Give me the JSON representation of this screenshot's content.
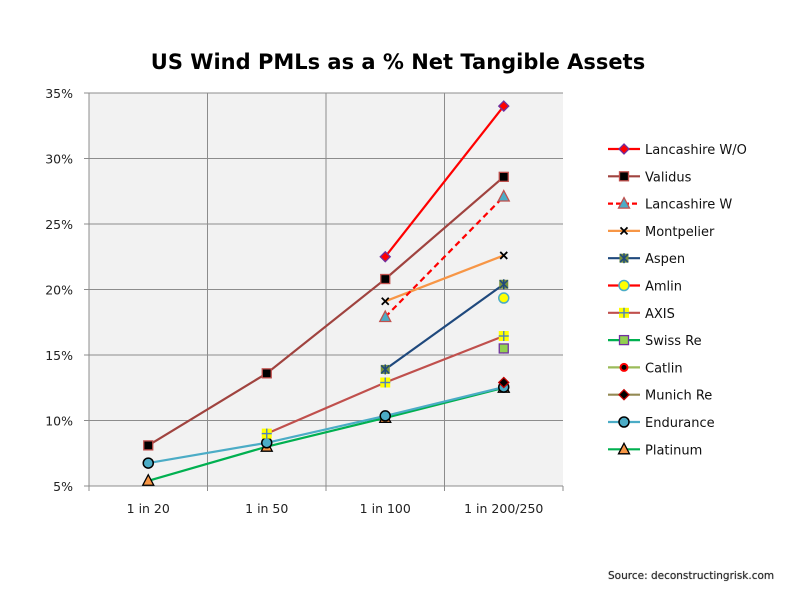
{
  "chart_data": {
    "type": "line",
    "title": "US Wind PMLs as a % Net Tangible Assets",
    "xlabel": "",
    "ylabel": "",
    "categories": [
      "1 in 20",
      "1 in 50",
      "1 in 100",
      "1 in 200/250"
    ],
    "ylim": [
      5,
      35
    ],
    "yticks": [
      5,
      10,
      15,
      20,
      25,
      30,
      35
    ],
    "ytick_labels": [
      "5%",
      "10%",
      "15%",
      "20%",
      "25%",
      "30%",
      "35%"
    ],
    "grid": true,
    "legend_position": "right",
    "series": [
      {
        "name": "Lancashire W/O",
        "values": [
          null,
          null,
          22.5,
          34.0
        ],
        "color": "#ff0000",
        "dash": false,
        "marker": "diamond",
        "marker_fill": "#ff0000",
        "marker_stroke": "#7030a0"
      },
      {
        "name": "Validus",
        "values": [
          8.1,
          13.6,
          20.8,
          28.6
        ],
        "color": "#a0433f",
        "dash": false,
        "marker": "square",
        "marker_fill": "#000000",
        "marker_stroke": "#c0504d"
      },
      {
        "name": "Lancashire W",
        "values": [
          null,
          null,
          17.9,
          27.1
        ],
        "color": "#ff0000",
        "dash": true,
        "marker": "triangle",
        "marker_fill": "#4bacc6",
        "marker_stroke": "#c0504d"
      },
      {
        "name": "Montpelier",
        "values": [
          null,
          null,
          19.1,
          22.6
        ],
        "color": "#f79646",
        "dash": false,
        "marker": "x",
        "marker_fill": "#f79646",
        "marker_stroke": "#000000"
      },
      {
        "name": "Aspen",
        "values": [
          null,
          null,
          13.9,
          20.4
        ],
        "color": "#1f497d",
        "dash": false,
        "marker": "star",
        "marker_fill": "#77933c",
        "marker_stroke": "#1f497d"
      },
      {
        "name": "Amlin",
        "values": [
          null,
          null,
          null,
          19.35
        ],
        "color": "#ff0000",
        "dash": false,
        "marker": "circle",
        "marker_fill": "#ffff00",
        "marker_stroke": "#4bacc6"
      },
      {
        "name": "AXIS",
        "values": [
          null,
          9.0,
          12.9,
          16.45
        ],
        "color": "#c0504d",
        "dash": false,
        "marker": "plus",
        "marker_fill": "#ffff00",
        "marker_stroke": "#4f81bd"
      },
      {
        "name": "Swiss Re",
        "values": [
          null,
          null,
          null,
          15.5
        ],
        "color": "#00b050",
        "dash": false,
        "marker": "square",
        "marker_fill": "#92d050",
        "marker_stroke": "#7030a0"
      },
      {
        "name": "Catlin",
        "values": [
          null,
          null,
          null,
          15.45
        ],
        "color": "#9bbb59",
        "dash": false,
        "marker": "circle-small",
        "marker_fill": "#000000",
        "marker_stroke": "#ff0000"
      },
      {
        "name": "Munich Re",
        "values": [
          null,
          null,
          null,
          12.9
        ],
        "color": "#948a54",
        "dash": false,
        "marker": "diamond",
        "marker_fill": "#000000",
        "marker_stroke": "#c00000"
      },
      {
        "name": "Endurance",
        "values": [
          6.75,
          8.3,
          10.35,
          12.55
        ],
        "color": "#4bacc6",
        "dash": false,
        "marker": "circle",
        "marker_fill": "#4bacc6",
        "marker_stroke": "#000000"
      },
      {
        "name": "Platinum",
        "values": [
          5.4,
          8.0,
          10.2,
          12.5
        ],
        "color": "#00b050",
        "dash": false,
        "marker": "triangle",
        "marker_fill": "#f79646",
        "marker_stroke": "#000000"
      }
    ]
  },
  "source_text": "Source: deconstructingrisk.com"
}
